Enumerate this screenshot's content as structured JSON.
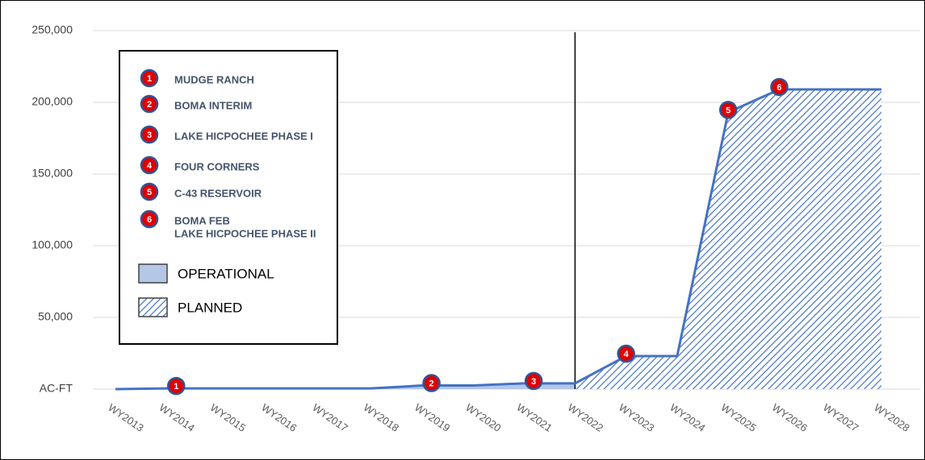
{
  "chart_data": {
    "type": "area",
    "categories": [
      "WY2013",
      "WY2014",
      "WY2015",
      "WY2016",
      "WY2017",
      "WY2018",
      "WY2019",
      "WY2020",
      "WY2021",
      "WY2022",
      "WY2023",
      "WY2024",
      "WY2025",
      "WY2026",
      "WY2027",
      "WY2028"
    ],
    "values": [
      0,
      500,
      500,
      500,
      500,
      500,
      2500,
      2500,
      4000,
      4000,
      23000,
      23000,
      193000,
      209000,
      209000,
      209000
    ],
    "marker_labels": [
      null,
      "1",
      null,
      null,
      null,
      null,
      "2",
      null,
      "3",
      null,
      "4",
      null,
      "5",
      "6",
      null,
      null
    ],
    "color": "#4472c4",
    "operational_color": "#b4c7e7",
    "divider_category": "WY2022",
    "ylim": [
      0,
      250000
    ],
    "yticks": [
      {
        "value": 0,
        "label": "AC-FT"
      },
      {
        "value": 50000,
        "label": "50,000"
      },
      {
        "value": 100000,
        "label": "100,000"
      },
      {
        "value": 150000,
        "label": "150,000"
      },
      {
        "value": 200000,
        "label": "200,000"
      },
      {
        "value": 250000,
        "label": "250,000"
      }
    ],
    "grid": true,
    "legend": {
      "items": [
        {
          "number": "1",
          "lines": [
            "MUDGE RANCH"
          ]
        },
        {
          "number": "2",
          "lines": [
            "BOMA INTERIM"
          ]
        },
        {
          "number": "3",
          "lines": [
            "LAKE HICPOCHEE PHASE I"
          ]
        },
        {
          "number": "4",
          "lines": [
            "FOUR CORNERS"
          ]
        },
        {
          "number": "5",
          "lines": [
            "C-43 RESERVOIR"
          ]
        },
        {
          "number": "6",
          "lines": [
            "BOMA FEB",
            "LAKE HICPOCHEE PHASE II"
          ]
        }
      ],
      "fills": [
        "OPERATIONAL",
        "PLANNED"
      ]
    }
  }
}
